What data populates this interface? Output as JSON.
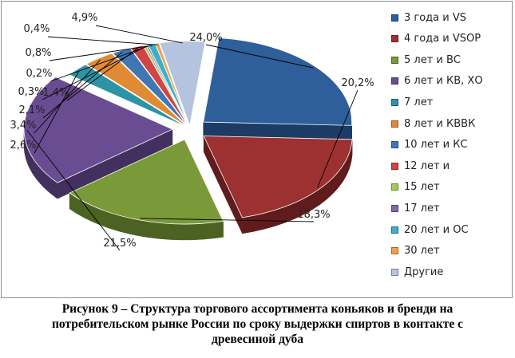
{
  "chart_data": {
    "type": "pie",
    "style": "3d-exploded",
    "title": "",
    "legend_position": "right",
    "series": [
      {
        "name": "3 года и VS",
        "value": 24.0,
        "label": "24,0%",
        "color": "#2f5f9a",
        "side": "#1c3c66"
      },
      {
        "name": "4 года и VSOP",
        "value": 20.2,
        "label": "20,2%",
        "color": "#9d3131",
        "side": "#601c1c"
      },
      {
        "name": "5 лет и ВС",
        "value": 18.3,
        "label": "18,3%",
        "color": "#7a9a3a",
        "side": "#4c6222"
      },
      {
        "name": "6 лет и КВ, ХО",
        "value": 21.5,
        "label": "21,5%",
        "color": "#6a4c93",
        "side": "#42305e"
      },
      {
        "name": "7 лет",
        "value": 2.6,
        "label": "2,6%",
        "color": "#2f93a8",
        "side": "#1d5e6b"
      },
      {
        "name": "8 лет и КВВК",
        "value": 3.4,
        "label": "3,4%",
        "color": "#e18a34",
        "side": "#a05c1c"
      },
      {
        "name": "10 лет и КС",
        "value": 2.1,
        "label": "2,1%",
        "color": "#3f77b5",
        "side": "#264a73"
      },
      {
        "name": "12 лет и",
        "value": 1.4,
        "label": "1,4%",
        "color": "#d04444",
        "side": "#8a2a2a"
      },
      {
        "name": "15 лет",
        "value": 0.3,
        "label": "0,3%",
        "color": "#a8c95a",
        "side": "#6d8536"
      },
      {
        "name": "17 лет",
        "value": 0.2,
        "label": "0,2%",
        "color": "#8465b0",
        "side": "#563f74"
      },
      {
        "name": "20 лет и ОС",
        "value": 0.8,
        "label": "0,8%",
        "color": "#3bb0c8",
        "side": "#247282"
      },
      {
        "name": "30 лет",
        "value": 0.4,
        "label": "0,4%",
        "color": "#f0a050",
        "side": "#a86a2e"
      },
      {
        "name": "Другие",
        "value": 4.9,
        "label": "4,9%",
        "color": "#b6c3de",
        "side": "#7d8aa6"
      }
    ]
  },
  "caption": {
    "line1": "Рисунок 9 – Структура торгового ассортимента коньяков и  бренди на",
    "line2": "потребительском рынке России по сроку выдержки спиртов в контакте с",
    "line3": "древесиной дуба"
  }
}
